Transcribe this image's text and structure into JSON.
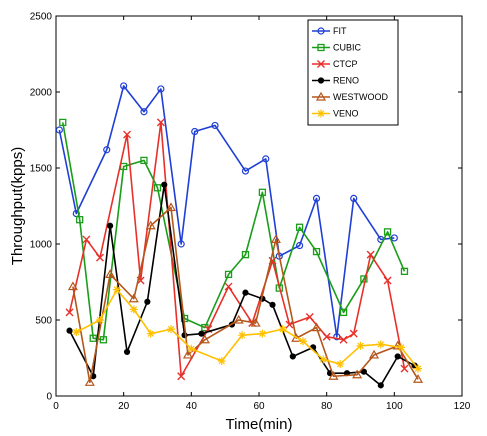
{
  "chart_data": {
    "type": "line",
    "xlabel": "Time(min)",
    "ylabel": "Throughput(kpps)",
    "xlim": [
      0,
      120
    ],
    "ylim": [
      0,
      2500
    ],
    "xticks": [
      0,
      20,
      40,
      60,
      80,
      100,
      120
    ],
    "yticks": [
      0,
      500,
      1000,
      1500,
      2000,
      2500
    ],
    "grid": false,
    "legend_position": "top-right",
    "series": [
      {
        "name": "FIT",
        "color": "#1f3fd6",
        "marker": "circle",
        "x": [
          1,
          6,
          15,
          20,
          26,
          31,
          37,
          41,
          47,
          56,
          62,
          66,
          72,
          77,
          83,
          88,
          96,
          100
        ],
        "y": [
          1750,
          1200,
          1620,
          2040,
          1870,
          2020,
          1000,
          1740,
          1780,
          1480,
          1560,
          920,
          990,
          1300,
          390,
          1300,
          1030,
          1040
        ]
      },
      {
        "name": "CUBIC",
        "color": "#1a9e1a",
        "marker": "square",
        "x": [
          2,
          7,
          11,
          14,
          20,
          26,
          30,
          38,
          44,
          51,
          56,
          61,
          66,
          72,
          77,
          85,
          91,
          98,
          103
        ],
        "y": [
          1800,
          1160,
          380,
          370,
          1510,
          1550,
          1370,
          510,
          450,
          800,
          930,
          1340,
          710,
          1110,
          950,
          550,
          770,
          1080,
          820
        ]
      },
      {
        "name": "CTCP",
        "color": "#e8302a",
        "marker": "x",
        "x": [
          4,
          9,
          13,
          21,
          25,
          31,
          37,
          45,
          51,
          58,
          64,
          69,
          75,
          80,
          85,
          88,
          93,
          98,
          103
        ],
        "y": [
          550,
          1030,
          910,
          1720,
          760,
          1800,
          130,
          440,
          720,
          480,
          890,
          470,
          520,
          390,
          370,
          410,
          930,
          760,
          180
        ]
      },
      {
        "name": "RENO",
        "color": "#000000",
        "marker": "dot",
        "x": [
          4,
          11,
          16,
          21,
          27,
          32,
          38,
          43,
          52,
          56,
          61,
          64,
          70,
          76,
          81,
          86,
          91,
          96,
          101,
          106
        ],
        "y": [
          430,
          130,
          1120,
          290,
          620,
          1390,
          400,
          410,
          470,
          680,
          640,
          600,
          260,
          320,
          150,
          150,
          160,
          70,
          260,
          200
        ]
      },
      {
        "name": "WESTWOOD",
        "color": "#b5561a",
        "marker": "triangle",
        "x": [
          5,
          10,
          16,
          23,
          28,
          34,
          39,
          44,
          54,
          59,
          65,
          71,
          77,
          82,
          89,
          94,
          101,
          107
        ],
        "y": [
          720,
          90,
          800,
          640,
          1120,
          1240,
          270,
          370,
          500,
          480,
          1030,
          380,
          450,
          130,
          140,
          270,
          330,
          110
        ]
      },
      {
        "name": "VENO",
        "color": "#ffc000",
        "marker": "star",
        "x": [
          6,
          13,
          18,
          23,
          28,
          34,
          40,
          49,
          55,
          61,
          67,
          73,
          79,
          84,
          90,
          96,
          102,
          107
        ],
        "y": [
          420,
          500,
          700,
          570,
          410,
          440,
          310,
          230,
          400,
          410,
          440,
          360,
          240,
          210,
          330,
          340,
          320,
          180
        ]
      }
    ]
  }
}
